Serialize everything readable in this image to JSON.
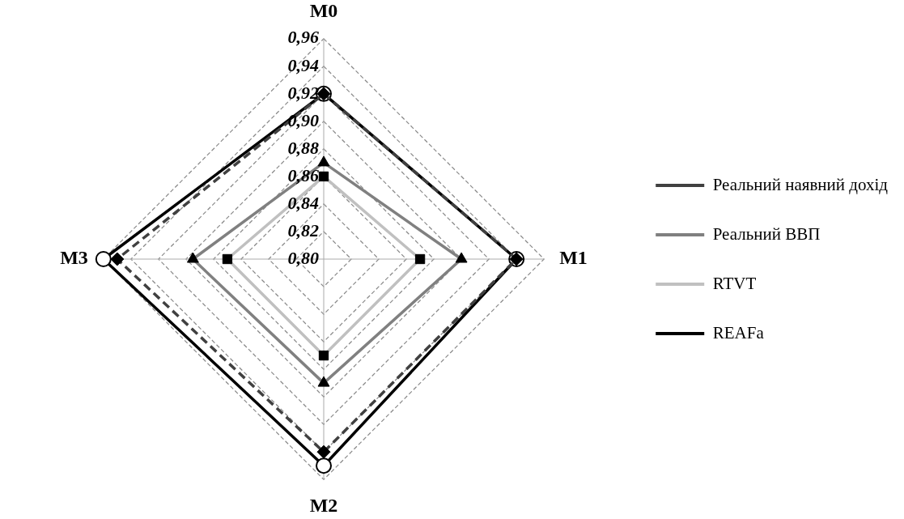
{
  "chart_data": {
    "type": "radar",
    "categories": [
      "M0",
      "M1",
      "M2",
      "M3"
    ],
    "ylim": [
      0.8,
      0.96
    ],
    "yticks": [
      {
        "value": 0.8,
        "label": "0,80"
      },
      {
        "value": 0.82,
        "label": "0,82"
      },
      {
        "value": 0.84,
        "label": "0,84"
      },
      {
        "value": 0.86,
        "label": "0,86"
      },
      {
        "value": 0.88,
        "label": "0,88"
      },
      {
        "value": 0.9,
        "label": "0,90"
      },
      {
        "value": 0.92,
        "label": "0,92"
      },
      {
        "value": 0.94,
        "label": "0,94"
      },
      {
        "value": 0.96,
        "label": "0,96"
      }
    ],
    "grid": true,
    "legend": "right",
    "series": [
      {
        "name": "Реальний наявний дохід",
        "color": "#404040",
        "marker": "diamond",
        "line_style": "dashed",
        "values": [
          0.92,
          0.94,
          0.94,
          0.95
        ]
      },
      {
        "name": "Реальний ВВП",
        "color": "#808080",
        "marker": "triangle",
        "line_style": "solid",
        "values": [
          0.87,
          0.9,
          0.89,
          0.895
        ]
      },
      {
        "name": "RTVT",
        "color": "#c0c0c0",
        "marker": "square",
        "line_style": "solid",
        "values": [
          0.86,
          0.87,
          0.87,
          0.87
        ]
      },
      {
        "name": "REAFa",
        "color": "#000000",
        "marker": "circle",
        "line_style": "solid",
        "values": [
          0.92,
          0.94,
          0.95,
          0.96
        ]
      }
    ]
  }
}
